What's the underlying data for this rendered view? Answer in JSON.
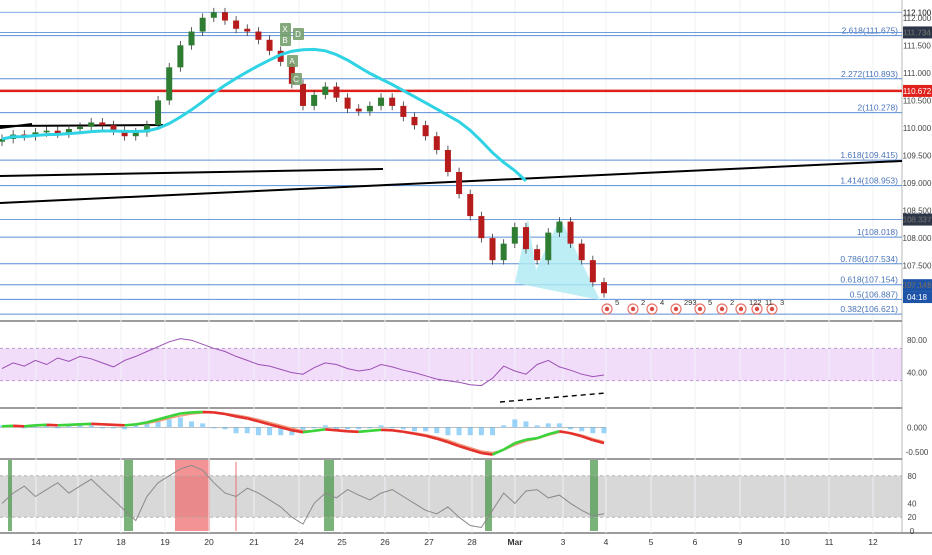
{
  "colors": {
    "background": "#ffffff",
    "grid": "#eef1f6",
    "fib_line": "#5b8fd6",
    "fib_label": "#4a74b8",
    "resistance": "#e0201b",
    "ma": "#2fd3e4",
    "trendline": "#000000",
    "candle_up": "#2e7d32",
    "candle_down": "#b71c1c",
    "rsi_line": "#9c4fb5",
    "rsi_band": "#f1ddfa",
    "macd_up": "#3ad43a",
    "macd_down": "#e4312b",
    "macd_signal": "#f29a7e",
    "hist_bar": "#6ec0f5",
    "stoch_line": "#8a8a8a",
    "stoch_band": "#d8d8d8",
    "highlight_green": "#4e9a4e",
    "highlight_red": "#ef6f72",
    "price_tag": "#1e54a8"
  },
  "chart_data": [
    {
      "type": "candlestick",
      "panel": "price",
      "x": [
        "14",
        "17",
        "18",
        "19",
        "20",
        "21",
        "24",
        "25",
        "26",
        "27",
        "28",
        "Mar",
        "3",
        "4",
        "5",
        "6",
        "9",
        "10",
        "11",
        "12"
      ],
      "ylim": [
        106.55,
        112.25
      ],
      "y_ticks": [
        "112.100",
        "112.000",
        "111.734",
        "111.500",
        "111.000",
        "110.500",
        "110.000",
        "109.500",
        "109.000",
        "108.500",
        "108.337",
        "108.000",
        "107.500",
        "107.146"
      ],
      "fibonacci_levels": [
        {
          "label": "2.618(111.675)",
          "value": 111.675
        },
        {
          "label": "2.272(110.893)",
          "value": 110.893
        },
        {
          "label": "2(110.278)",
          "value": 110.278
        },
        {
          "label": "1.618(109.415)",
          "value": 109.415
        },
        {
          "label": "1.414(108.953)",
          "value": 108.953
        },
        {
          "label": "1(108.018)",
          "value": 108.018
        },
        {
          "label": "0.786(107.534)",
          "value": 107.534
        },
        {
          "label": "0.618(107.154)",
          "value": 107.154
        },
        {
          "label": "0.5(106.887)",
          "value": 106.887
        },
        {
          "label": "0.382(106.621)",
          "value": 106.621
        }
      ],
      "price_tags": [
        {
          "label": "112.100",
          "value": 112.1,
          "kind": "plain"
        },
        {
          "label": "111.734",
          "value": 111.734,
          "kind": "dark"
        },
        {
          "label": "110.672",
          "value": 110.672,
          "kind": "red"
        },
        {
          "label": "108.337",
          "value": 108.337,
          "kind": "dark"
        },
        {
          "label": "107.146",
          "value": 107.146,
          "kind": "blue"
        },
        {
          "label": "04:18",
          "value": 106.93,
          "kind": "blue"
        }
      ],
      "resistance_line": 110.672,
      "pattern_labels": [
        "X",
        "D",
        "B",
        "A",
        "C"
      ],
      "event_labels": [
        "5",
        "2",
        "4",
        "293",
        "5",
        "2",
        "122",
        "11",
        "3"
      ],
      "closes": [
        109.8,
        109.88,
        109.85,
        109.92,
        109.95,
        109.9,
        109.98,
        110.02,
        110.1,
        110.05,
        109.95,
        109.85,
        109.92,
        110.05,
        110.5,
        111.1,
        111.5,
        111.75,
        112.0,
        112.1,
        111.95,
        111.8,
        111.75,
        111.6,
        111.4,
        111.2,
        110.8,
        110.4,
        110.6,
        110.75,
        110.55,
        110.35,
        110.3,
        110.4,
        110.55,
        110.4,
        110.2,
        110.05,
        109.85,
        109.6,
        109.2,
        108.8,
        108.4,
        108.0,
        107.6,
        107.9,
        108.2,
        107.8,
        107.6,
        108.1,
        108.3,
        107.9,
        107.6,
        107.2,
        107.0
      ]
    },
    {
      "type": "line",
      "panel": "rsi",
      "ylim": [
        0,
        100
      ],
      "y_ticks": [
        "80.00",
        "40.00"
      ],
      "band": [
        30,
        70
      ],
      "values": [
        45,
        52,
        48,
        55,
        50,
        58,
        54,
        60,
        57,
        52,
        47,
        55,
        60,
        66,
        72,
        78,
        82,
        80,
        75,
        70,
        66,
        60,
        55,
        50,
        48,
        44,
        40,
        38,
        46,
        52,
        50,
        45,
        42,
        44,
        50,
        47,
        43,
        40,
        36,
        32,
        30,
        28,
        25,
        24,
        33,
        48,
        42,
        38,
        50,
        55,
        47,
        43,
        38,
        35,
        37
      ]
    },
    {
      "type": "line",
      "panel": "macd",
      "ylim": [
        -0.6,
        0.35
      ],
      "y_ticks": [
        "0.000",
        "-0.500"
      ],
      "macd": [
        0.02,
        0.03,
        0.02,
        0.04,
        0.05,
        0.04,
        0.05,
        0.06,
        0.07,
        0.06,
        0.05,
        0.04,
        0.06,
        0.1,
        0.16,
        0.22,
        0.28,
        0.3,
        0.31,
        0.3,
        0.27,
        0.22,
        0.18,
        0.12,
        0.06,
        0.0,
        -0.06,
        -0.1,
        -0.07,
        -0.04,
        -0.06,
        -0.08,
        -0.09,
        -0.07,
        -0.05,
        -0.06,
        -0.09,
        -0.13,
        -0.17,
        -0.23,
        -0.3,
        -0.38,
        -0.45,
        -0.52,
        -0.55,
        -0.45,
        -0.32,
        -0.25,
        -0.22,
        -0.14,
        -0.08,
        -0.12,
        -0.18,
        -0.26,
        -0.32
      ],
      "signal": [
        0.01,
        0.02,
        0.02,
        0.03,
        0.04,
        0.04,
        0.04,
        0.05,
        0.06,
        0.06,
        0.05,
        0.05,
        0.05,
        0.08,
        0.12,
        0.18,
        0.23,
        0.27,
        0.29,
        0.3,
        0.28,
        0.25,
        0.21,
        0.16,
        0.1,
        0.04,
        -0.02,
        -0.07,
        -0.07,
        -0.05,
        -0.05,
        -0.07,
        -0.08,
        -0.07,
        -0.06,
        -0.06,
        -0.08,
        -0.11,
        -0.15,
        -0.2,
        -0.26,
        -0.34,
        -0.41,
        -0.48,
        -0.51,
        -0.46,
        -0.36,
        -0.28,
        -0.23,
        -0.16,
        -0.1,
        -0.11,
        -0.16,
        -0.23,
        -0.29
      ]
    },
    {
      "type": "line",
      "panel": "stochastic",
      "ylim": [
        0,
        100
      ],
      "y_ticks": [
        "80",
        "40",
        "20",
        "0"
      ],
      "band": [
        20,
        80
      ],
      "values": [
        40,
        55,
        65,
        50,
        60,
        70,
        55,
        65,
        75,
        60,
        45,
        30,
        15,
        50,
        70,
        80,
        90,
        95,
        88,
        70,
        55,
        50,
        62,
        55,
        45,
        35,
        20,
        10,
        40,
        55,
        48,
        60,
        52,
        45,
        55,
        60,
        50,
        40,
        30,
        25,
        35,
        20,
        8,
        5,
        30,
        55,
        40,
        58,
        60,
        48,
        52,
        40,
        30,
        22,
        25
      ]
    }
  ],
  "x_axis_labels": [
    "14",
    "17",
    "18",
    "19",
    "20",
    "21",
    "24",
    "25",
    "26",
    "27",
    "28",
    "Mar",
    "3",
    "4",
    "5",
    "6",
    "9",
    "10",
    "11",
    "12"
  ]
}
